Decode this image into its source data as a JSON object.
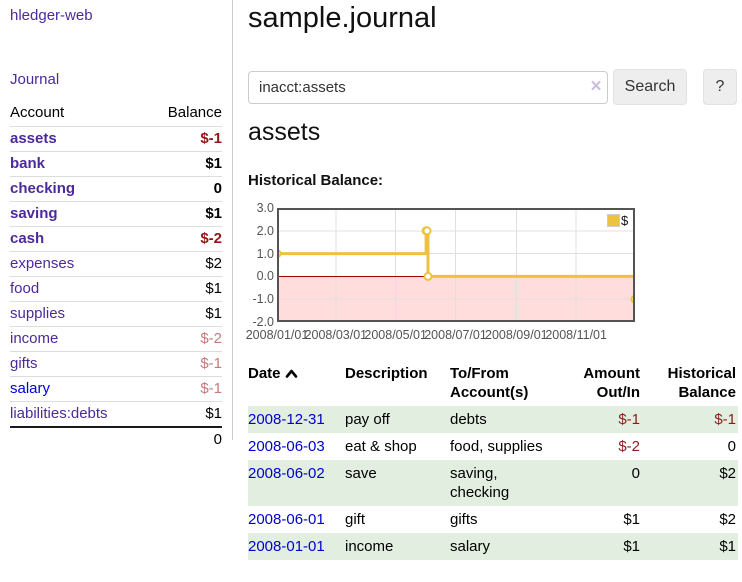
{
  "sidebar": {
    "brand": "hledger-web",
    "journal_link": "Journal",
    "accounts": {
      "col_account": "Account",
      "col_balance": "Balance",
      "rows": [
        {
          "name": "assets",
          "balance": "$-1",
          "depth": 1,
          "bold": true,
          "balance_style": "neg-strong",
          "link_color": "purple"
        },
        {
          "name": "bank",
          "balance": "$1",
          "depth": 2,
          "bold": true,
          "balance_style": "pos",
          "link_color": "purple"
        },
        {
          "name": "checking",
          "balance": "0",
          "depth": 3,
          "bold": true,
          "balance_style": "pos",
          "link_color": "purple"
        },
        {
          "name": "saving",
          "balance": "$1",
          "depth": 3,
          "bold": true,
          "balance_style": "pos",
          "link_color": "purple"
        },
        {
          "name": "cash",
          "balance": "$-2",
          "depth": 2,
          "bold": true,
          "balance_style": "neg-strong",
          "link_color": "purple"
        },
        {
          "name": "expenses",
          "balance": "$2",
          "depth": 1,
          "bold": false,
          "balance_style": "pos",
          "link_color": "purple"
        },
        {
          "name": "food",
          "balance": "$1",
          "depth": 2,
          "bold": false,
          "balance_style": "pos",
          "link_color": "purple"
        },
        {
          "name": "supplies",
          "balance": "$1",
          "depth": 2,
          "bold": false,
          "balance_style": "pos",
          "link_color": "purple"
        },
        {
          "name": "income",
          "balance": "$-2",
          "depth": 1,
          "bold": false,
          "balance_style": "neg-light",
          "link_color": "purple"
        },
        {
          "name": "gifts",
          "balance": "$-1",
          "depth": 2,
          "bold": false,
          "balance_style": "neg-light",
          "link_color": "purple"
        },
        {
          "name": "salary",
          "balance": "$-1",
          "depth": 2,
          "bold": false,
          "balance_style": "neg-light",
          "link_color": "blue"
        },
        {
          "name": "liabilities:debts",
          "balance": "$1",
          "depth": 1,
          "bold": false,
          "balance_style": "pos",
          "link_color": "purple"
        }
      ],
      "total": "0"
    }
  },
  "main": {
    "title": "sample.journal",
    "search": {
      "value": "inacct:assets",
      "clear_glyph": "×",
      "search_button": "Search",
      "help_button": "?"
    },
    "account_heading": "assets",
    "section_label": "Historical Balance:"
  },
  "chart_data": {
    "type": "line",
    "step": true,
    "title": "Historical Balance",
    "series": [
      {
        "name": "$",
        "color": "#edc240",
        "points": [
          [
            "2008/01/01",
            1
          ],
          [
            "2008/06/01",
            2
          ],
          [
            "2008/06/02",
            2
          ],
          [
            "2008/06/03",
            0
          ],
          [
            "2008/12/31",
            -1
          ]
        ]
      }
    ],
    "x_range": [
      "2008/01/01",
      "2008/12/31"
    ],
    "xticks": [
      "2008/01/01",
      "2008/03/01",
      "2008/05/01",
      "2008/07/01",
      "2008/09/01",
      "2008/11/01"
    ],
    "yticks": [
      "3.0",
      "2.0",
      "1.0",
      "0.0",
      "-1.0",
      "-2.0"
    ],
    "ylim": [
      -2,
      3
    ],
    "legend": {
      "label": "$",
      "position": "top-right"
    },
    "grid": true,
    "negative_fill": "#ffdddd",
    "zero_line_color": "#a40000",
    "grid_color": "#e0e0e0",
    "border_color": "#545454"
  },
  "register": {
    "headers": {
      "date": "Date",
      "description": "Description",
      "accounts": "To/From Account(s)",
      "amount": "Amount Out/In",
      "balance": "Historical Balance"
    },
    "sort": {
      "column": "date",
      "direction": "asc"
    },
    "rows": [
      {
        "date": "2008-12-31",
        "description": "pay off",
        "accounts": "debts",
        "amount": "$-1",
        "amount_neg": true,
        "balance": "$-1",
        "balance_neg": true,
        "stripe": true
      },
      {
        "date": "2008-06-03",
        "description": "eat & shop",
        "accounts": "food, supplies",
        "amount": "$-2",
        "amount_neg": true,
        "balance": "0",
        "balance_neg": false,
        "stripe": false
      },
      {
        "date": "2008-06-02",
        "description": "save",
        "accounts": "saving, checking",
        "amount": "0",
        "amount_neg": false,
        "balance": "$2",
        "balance_neg": false,
        "stripe": true
      },
      {
        "date": "2008-06-01",
        "description": "gift",
        "accounts": "gifts",
        "amount": "$1",
        "amount_neg": false,
        "balance": "$2",
        "balance_neg": false,
        "stripe": false
      },
      {
        "date": "2008-01-01",
        "description": "income",
        "accounts": "salary",
        "amount": "$1",
        "amount_neg": false,
        "balance": "$1",
        "balance_neg": false,
        "stripe": true
      }
    ]
  },
  "colors": {
    "link_purple": "#4c2a9c",
    "link_blue": "#0000dd",
    "negative_strong": "#941616",
    "negative_light": "#c47a7a",
    "register_negative": "#8e1b1b",
    "row_stripe_green": "#e2eee0",
    "chart_series_gold": "#edc240"
  }
}
